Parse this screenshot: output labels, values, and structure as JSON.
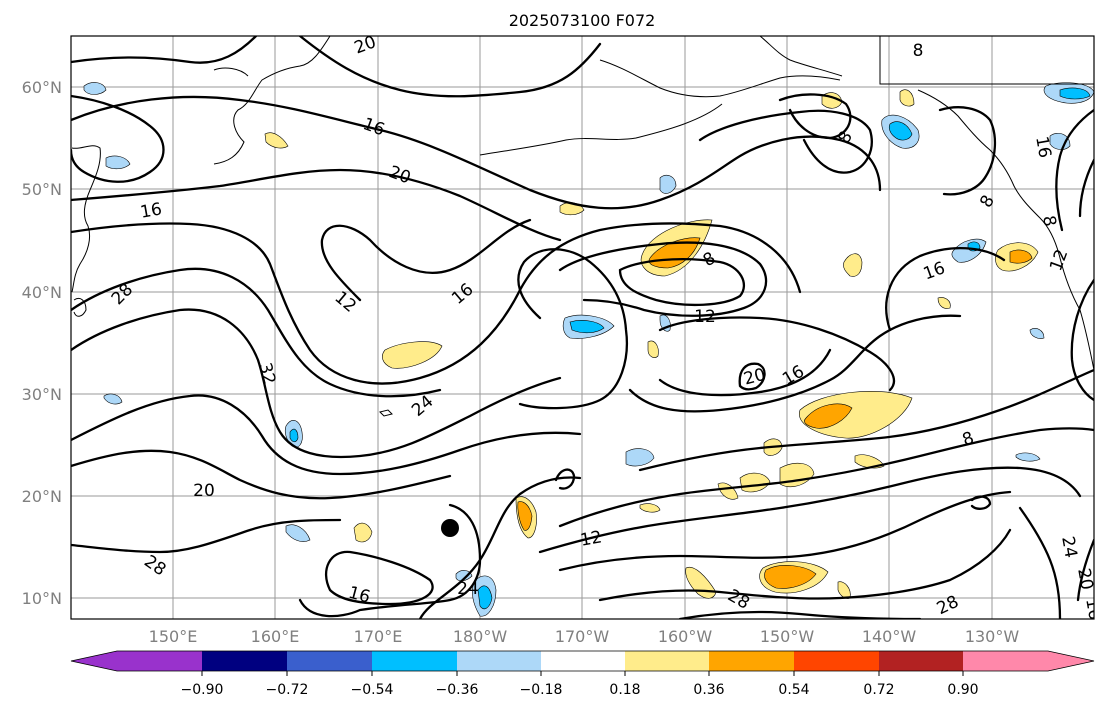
{
  "title": "2025073100 F072",
  "map": {
    "projection": "cylindrical",
    "lon_range": [
      "140°E",
      "120°W"
    ],
    "lat_range": [
      "8°N",
      "65°N"
    ],
    "gridlines": true,
    "lat_labels": [
      "10°N",
      "20°N",
      "30°N",
      "40°N",
      "50°N",
      "60°N"
    ],
    "lon_labels": [
      "150°E",
      "160°E",
      "170°E",
      "180°W",
      "170°W",
      "160°W",
      "150°W",
      "140°W",
      "130°W"
    ],
    "contour_labels": [
      "20",
      "16",
      "20",
      "16",
      "28",
      "12",
      "16",
      "32",
      "24",
      "20",
      "16",
      "28",
      "24",
      "12",
      "8",
      "12",
      "20",
      "16",
      "8",
      "16",
      "8",
      "8",
      "16",
      "8",
      "12",
      "8",
      "28",
      "28",
      "24",
      "20",
      "16"
    ],
    "storm_marker": "black-dot"
  },
  "colorbar": {
    "ticks": [
      "−0.90",
      "−0.72",
      "−0.54",
      "−0.36",
      "−0.18",
      "0.18",
      "0.36",
      "0.54",
      "0.72",
      "0.90"
    ],
    "colors": [
      "#9932cc",
      "#000080",
      "#3a5fcd",
      "#00bfff",
      "#add8f8",
      "#ffffff",
      "#ffec8b",
      "#ffa500",
      "#ff4500",
      "#b22222",
      "#ff88aa"
    ]
  }
}
